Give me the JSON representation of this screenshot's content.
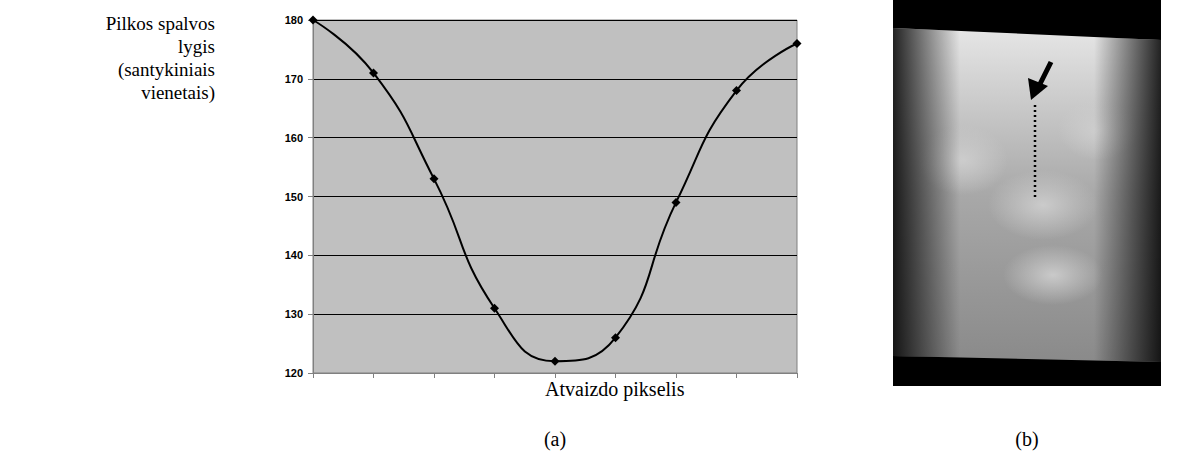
{
  "chart_data": {
    "type": "line",
    "caption": "(a)",
    "x_label": "Atvaizdo pikselis",
    "y_label": "Pilkos spalvos lygis (santykiniais vienetais)",
    "categories": [
      null,
      null,
      null,
      null,
      null,
      null,
      null,
      null,
      null
    ],
    "values": [
      180,
      171,
      153,
      131,
      122,
      126,
      149,
      168,
      176
    ],
    "color": "#000000",
    "marker": "diamond",
    "line_style": "smooth",
    "ylim": [
      120,
      180
    ],
    "yticks": [
      120,
      130,
      140,
      150,
      160,
      170,
      180
    ],
    "grid": true,
    "tick_labels": "y"
  },
  "image_panel": {
    "caption": "(b)"
  }
}
